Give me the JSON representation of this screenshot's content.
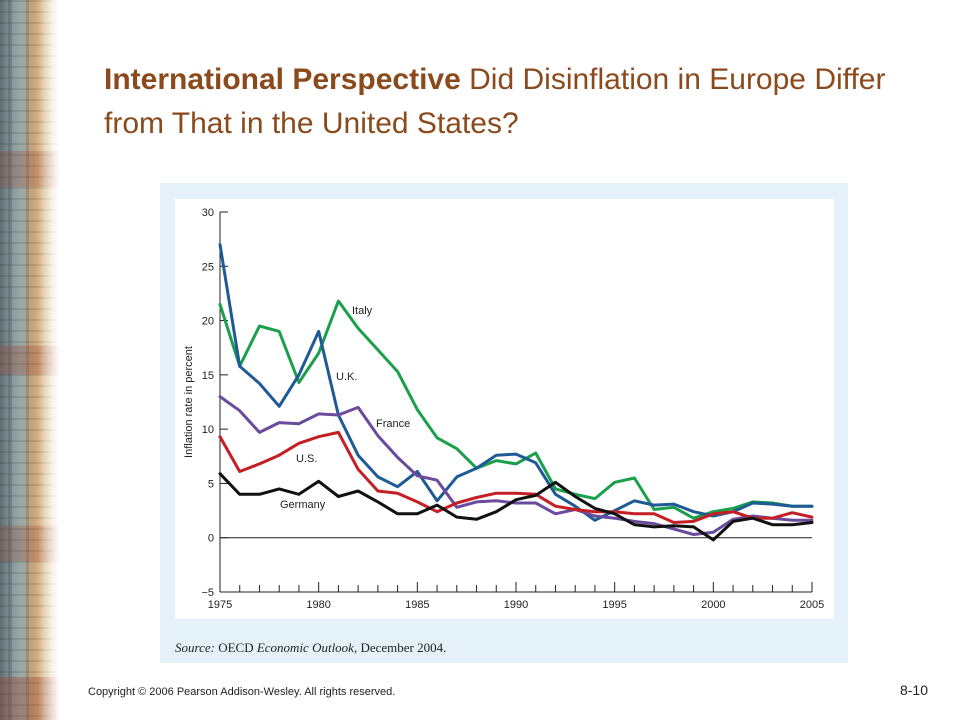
{
  "slide": {
    "title_bold": "International Perspective",
    "title_rest": "Did Disinflation in Europe Differ from That in the United States?",
    "source_prefix": "Source:",
    "source_org": "OECD",
    "source_pub": "Economic Outlook,",
    "source_date": "December 2004.",
    "copyright": "Copyright © 2006 Pearson Addison-Wesley. All rights reserved.",
    "slide_number": "8-10"
  },
  "chart_data": {
    "type": "line",
    "ylabel": "Inflation rate in percent",
    "xlabel": "",
    "xlim": [
      1975,
      2005
    ],
    "ylim": [
      -5,
      30
    ],
    "xticks": [
      1975,
      1980,
      1985,
      1990,
      1995,
      2000,
      2005
    ],
    "yticks": [
      -5,
      0,
      5,
      10,
      15,
      20,
      25,
      30
    ],
    "x": [
      1975,
      1976,
      1977,
      1978,
      1979,
      1980,
      1981,
      1982,
      1983,
      1984,
      1985,
      1986,
      1987,
      1988,
      1989,
      1990,
      1991,
      1992,
      1993,
      1994,
      1995,
      1996,
      1997,
      1998,
      1999,
      2000,
      2001,
      2002,
      2003,
      2004,
      2005
    ],
    "series": [
      {
        "name": "Italy",
        "color": "#1aa04a",
        "values": [
          21.5,
          15.8,
          19.5,
          19.0,
          14.3,
          17.0,
          21.8,
          19.3,
          17.3,
          15.3,
          11.8,
          9.2,
          8.2,
          6.4,
          7.1,
          6.8,
          7.8,
          4.5,
          4.0,
          3.6,
          5.1,
          5.5,
          2.6,
          2.8,
          1.8,
          2.4,
          2.7,
          3.3,
          3.2,
          2.9,
          2.9
        ]
      },
      {
        "name": "U.K.",
        "color": "#1f5a96",
        "values": [
          27.0,
          15.8,
          14.2,
          12.1,
          15.0,
          19.0,
          11.3,
          7.6,
          5.6,
          4.7,
          6.1,
          3.4,
          5.6,
          6.4,
          7.6,
          7.7,
          6.9,
          4.0,
          2.9,
          1.6,
          2.5,
          3.4,
          3.0,
          3.1,
          2.4,
          2.0,
          2.4,
          3.2,
          3.1,
          2.9,
          2.9
        ]
      },
      {
        "name": "France",
        "color": "#6a4b9c",
        "values": [
          13.0,
          11.7,
          9.7,
          10.6,
          10.5,
          11.4,
          11.3,
          12.0,
          9.4,
          7.4,
          5.7,
          5.3,
          2.8,
          3.3,
          3.4,
          3.2,
          3.2,
          2.2,
          2.6,
          2.0,
          1.8,
          1.5,
          1.3,
          0.8,
          0.3,
          0.5,
          1.7,
          2.0,
          1.8,
          1.6,
          1.6
        ]
      },
      {
        "name": "U.S.",
        "color": "#c41f25",
        "values": [
          9.3,
          6.1,
          6.8,
          7.6,
          8.7,
          9.3,
          9.7,
          6.3,
          4.3,
          4.1,
          3.3,
          2.4,
          3.2,
          3.7,
          4.1,
          4.1,
          4.0,
          2.9,
          2.6,
          2.4,
          2.4,
          2.2,
          2.2,
          1.4,
          1.5,
          2.2,
          2.4,
          1.8,
          1.8,
          2.3,
          1.9
        ]
      },
      {
        "name": "Germany",
        "color": "#111111",
        "values": [
          5.9,
          4.0,
          4.0,
          4.5,
          4.0,
          5.2,
          3.8,
          4.3,
          3.3,
          2.2,
          2.2,
          3.0,
          1.9,
          1.7,
          2.4,
          3.5,
          3.9,
          5.1,
          3.8,
          2.7,
          2.2,
          1.2,
          1.0,
          1.1,
          1.0,
          -0.2,
          1.5,
          1.8,
          1.2,
          1.2,
          1.4
        ]
      }
    ],
    "legend": "inline labels"
  }
}
